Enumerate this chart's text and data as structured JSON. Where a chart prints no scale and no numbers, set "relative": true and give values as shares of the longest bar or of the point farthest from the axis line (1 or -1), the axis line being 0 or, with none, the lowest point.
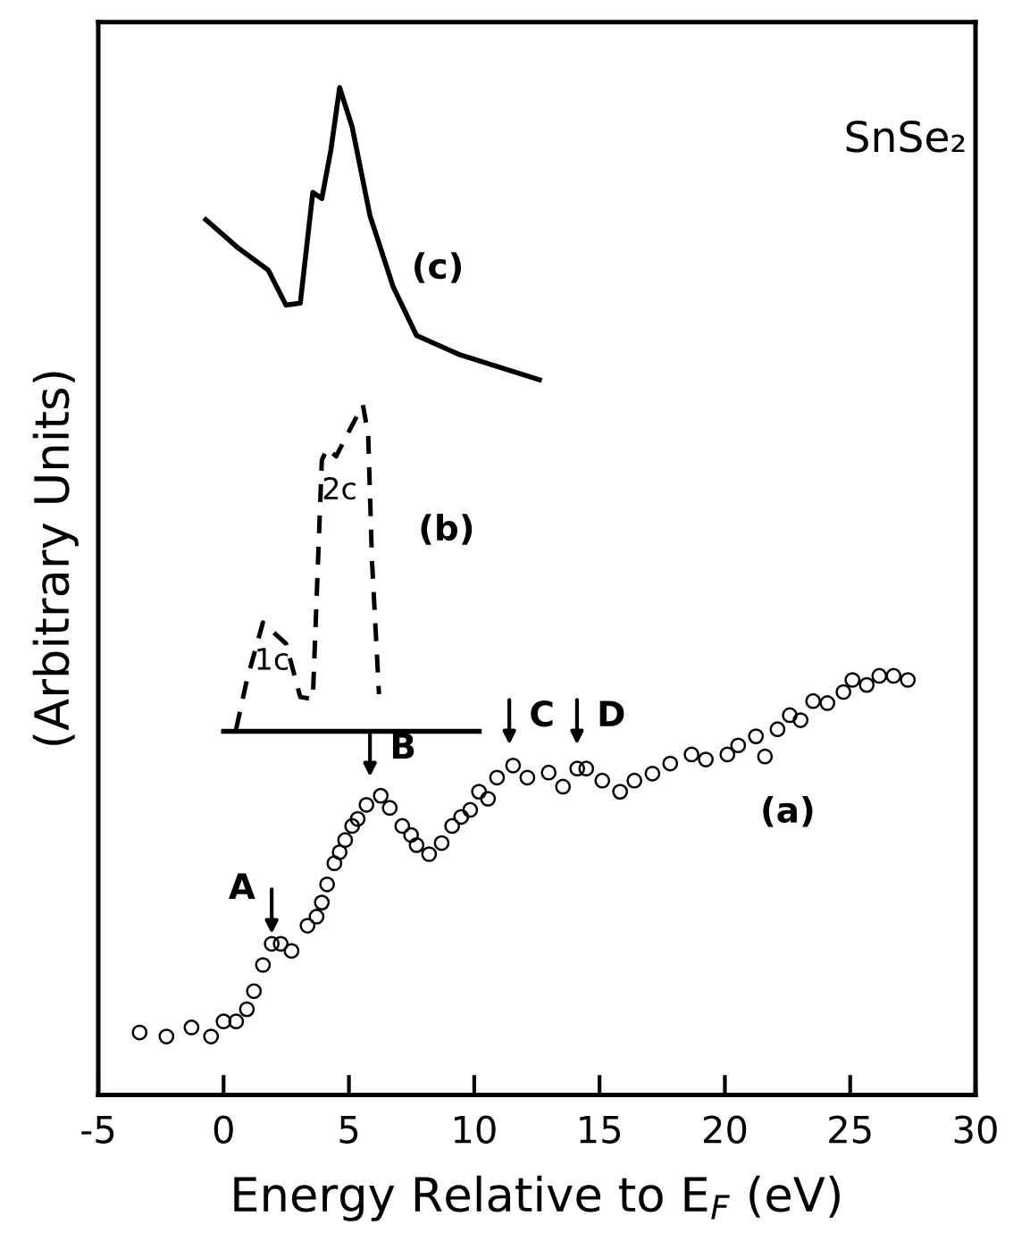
{
  "chart_data": {
    "type": "line",
    "relative": true,
    "xlabel": "Energy Relative to E$_{F}$ (eV)",
    "ylabel": "(Arbitrary Units)",
    "xlim": [
      -5,
      30
    ],
    "xticks": [
      -5,
      0,
      5,
      10,
      15,
      20,
      25,
      30
    ],
    "grid": false,
    "legend": false,
    "series": [
      {
        "type": "scatter",
        "marker": "circle",
        "color": "#000000",
        "x": [
          -3.35,
          -2.28,
          -1.28,
          -0.5,
          0.0,
          0.5,
          0.93,
          1.21,
          1.57,
          1.92,
          2.28,
          2.71,
          3.35,
          3.71,
          3.92,
          4.13,
          4.42,
          4.63,
          4.85,
          5.13,
          5.35,
          5.7,
          6.27,
          6.63,
          7.13,
          7.48,
          7.7,
          8.2,
          8.7,
          9.12,
          9.48,
          9.84,
          10.19,
          10.55,
          10.91,
          11.55,
          12.12,
          12.97,
          13.54,
          14.11,
          14.47,
          15.11,
          15.82,
          16.39,
          17.11,
          17.82,
          18.67,
          19.24,
          20.1,
          20.53,
          21.24,
          21.6,
          22.1,
          22.59,
          23.02,
          23.52,
          24.09,
          24.73,
          25.09,
          25.66,
          26.16,
          26.73,
          27.3
        ],
        "values": [
          0.062,
          0.058,
          0.067,
          0.058,
          0.073,
          0.073,
          0.085,
          0.103,
          0.129,
          0.15,
          0.15,
          0.143,
          0.168,
          0.177,
          0.191,
          0.209,
          0.23,
          0.241,
          0.253,
          0.267,
          0.274,
          0.288,
          0.297,
          0.285,
          0.267,
          0.258,
          0.248,
          0.239,
          0.25,
          0.267,
          0.276,
          0.283,
          0.301,
          0.294,
          0.315,
          0.327,
          0.315,
          0.32,
          0.306,
          0.324,
          0.324,
          0.312,
          0.301,
          0.312,
          0.319,
          0.329,
          0.338,
          0.333,
          0.338,
          0.347,
          0.356,
          0.336,
          0.363,
          0.377,
          0.372,
          0.391,
          0.389,
          0.4,
          0.412,
          0.407,
          0.416,
          0.416,
          0.412
        ]
      },
      {
        "line_style": "solid",
        "color": "#000000",
        "x": [
          0.0,
          10.2
        ],
        "values": [
          0.361,
          0.361
        ]
      },
      {
        "line_style": "dashed",
        "color": "#000000",
        "x": [
          0.5,
          0.93,
          1.57,
          2.49,
          3.06,
          3.56,
          3.92,
          4.13,
          4.49,
          5.13,
          5.56,
          5.77,
          5.92,
          6.2
        ],
        "values": [
          0.363,
          0.412,
          0.469,
          0.448,
          0.395,
          0.393,
          0.63,
          0.642,
          0.634,
          0.665,
          0.685,
          0.655,
          0.531,
          0.398
        ]
      },
      {
        "line_style": "solid",
        "color": "#000000",
        "x": [
          -0.71,
          0.57,
          1.78,
          2.49,
          3.06,
          3.56,
          3.92,
          4.28,
          4.63,
          5.13,
          5.84,
          6.77,
          7.7,
          9.41,
          12.6
        ],
        "values": [
          0.869,
          0.841,
          0.819,
          0.784,
          0.786,
          0.896,
          0.89,
          0.938,
          1.0,
          0.961,
          0.873,
          0.802,
          0.754,
          0.735,
          0.71
        ]
      }
    ],
    "annotations": [
      {
        "text": "A",
        "x": 1.92,
        "y": 0.15
      },
      {
        "text": "B",
        "x": 5.84,
        "y": 0.306
      },
      {
        "text": "C",
        "x": 11.4,
        "y": 0.338
      },
      {
        "text": "D",
        "x": 14.1,
        "y": 0.338
      },
      "(a)",
      "(b)",
      "(c)",
      "1c",
      "2c",
      "SnSe₂"
    ]
  }
}
